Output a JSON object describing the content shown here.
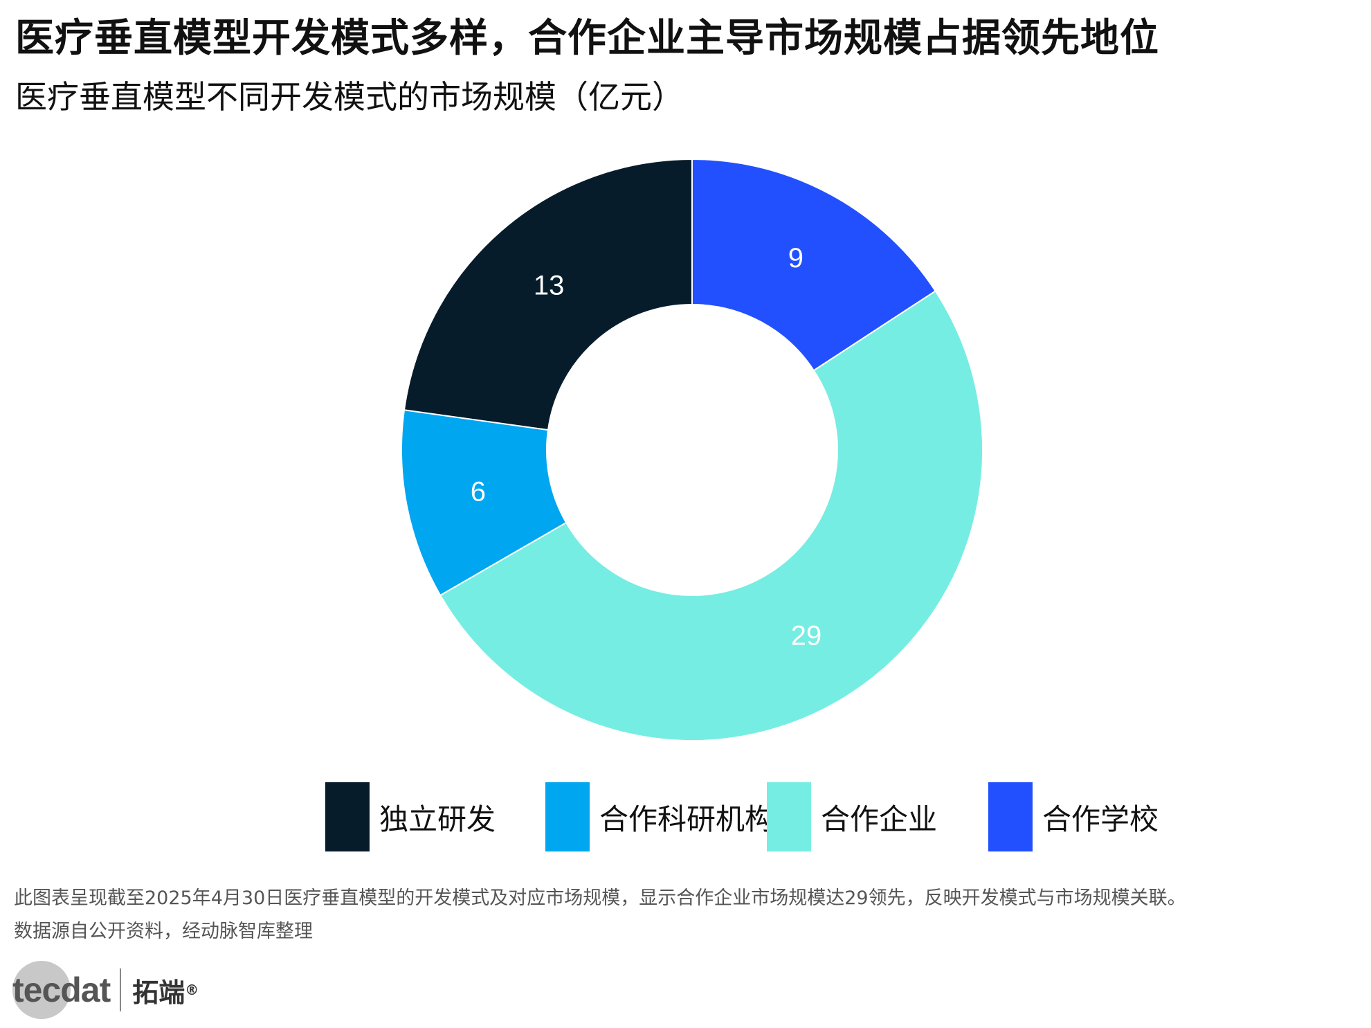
{
  "title": "医疗垂直模型开发模式多样，合作企业主导市场规模占据领先地位",
  "subtitle": "医疗垂直模型不同开发模式的市场规模（亿元）",
  "chart_data": {
    "type": "pie",
    "donut": true,
    "categories": [
      "独立研发",
      "合作科研机构",
      "合作企业",
      "合作学校"
    ],
    "values": [
      13,
      6,
      29,
      9
    ],
    "colors": [
      "#071c2b",
      "#00a6f0",
      "#76ede3",
      "#2350fe"
    ],
    "label_color": "#ffffff",
    "legend_position": "bottom"
  },
  "legend": {
    "items": [
      {
        "label": "独立研发",
        "color": "#071c2b"
      },
      {
        "label": "合作科研机构",
        "color": "#00a6f0"
      },
      {
        "label": "合作企业",
        "color": "#76ede3"
      },
      {
        "label": "合作学校",
        "color": "#2350fe"
      }
    ]
  },
  "footer": {
    "note": "此图表呈现截至2025年4月30日医疗垂直模型的开发模式及对应市场规模，显示合作企业市场规模达29领先，反映开发模式与市场规模关联。",
    "source": "数据源自公开资料，经动脉智库整理"
  },
  "logo": {
    "brand": "tecdat",
    "cn_name": "拓端",
    "reg_mark": "®"
  }
}
